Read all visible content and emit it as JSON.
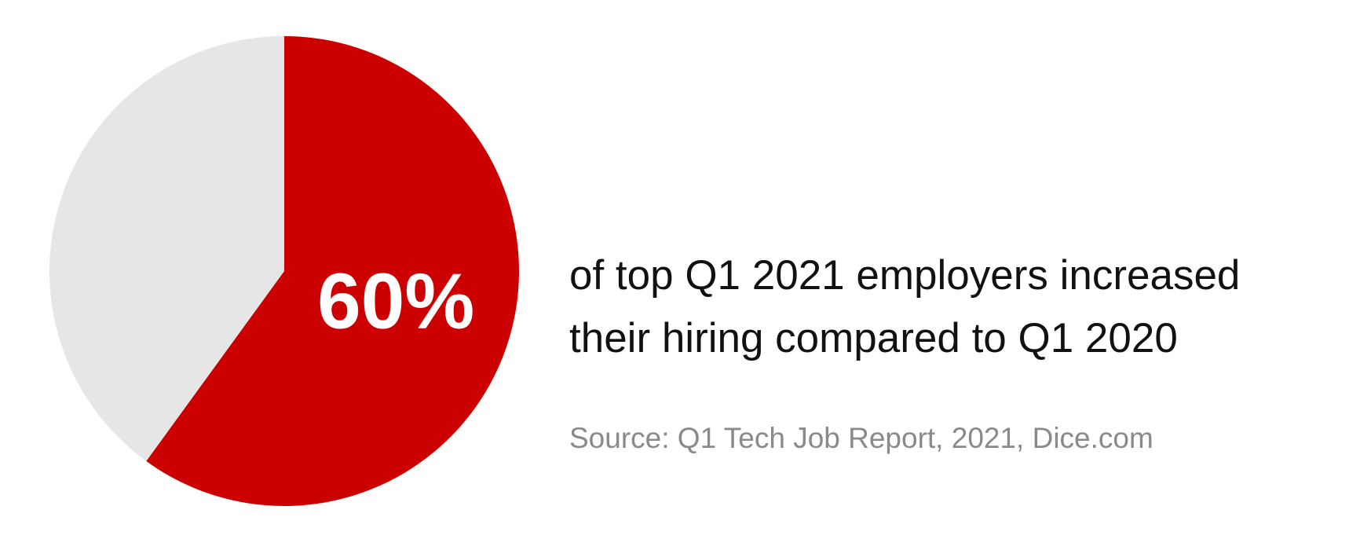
{
  "chart_data": {
    "type": "pie",
    "values": [
      60,
      40
    ],
    "value_labels": [
      "60%",
      null
    ],
    "colors": [
      "#cc0000",
      "#e6e6e6"
    ],
    "annotation": [
      "of top Q1 2021 employers increased",
      "their hiring compared to Q1 2020"
    ],
    "source": "Source: Q1 Tech Job Report, 2021, Dice.com"
  }
}
